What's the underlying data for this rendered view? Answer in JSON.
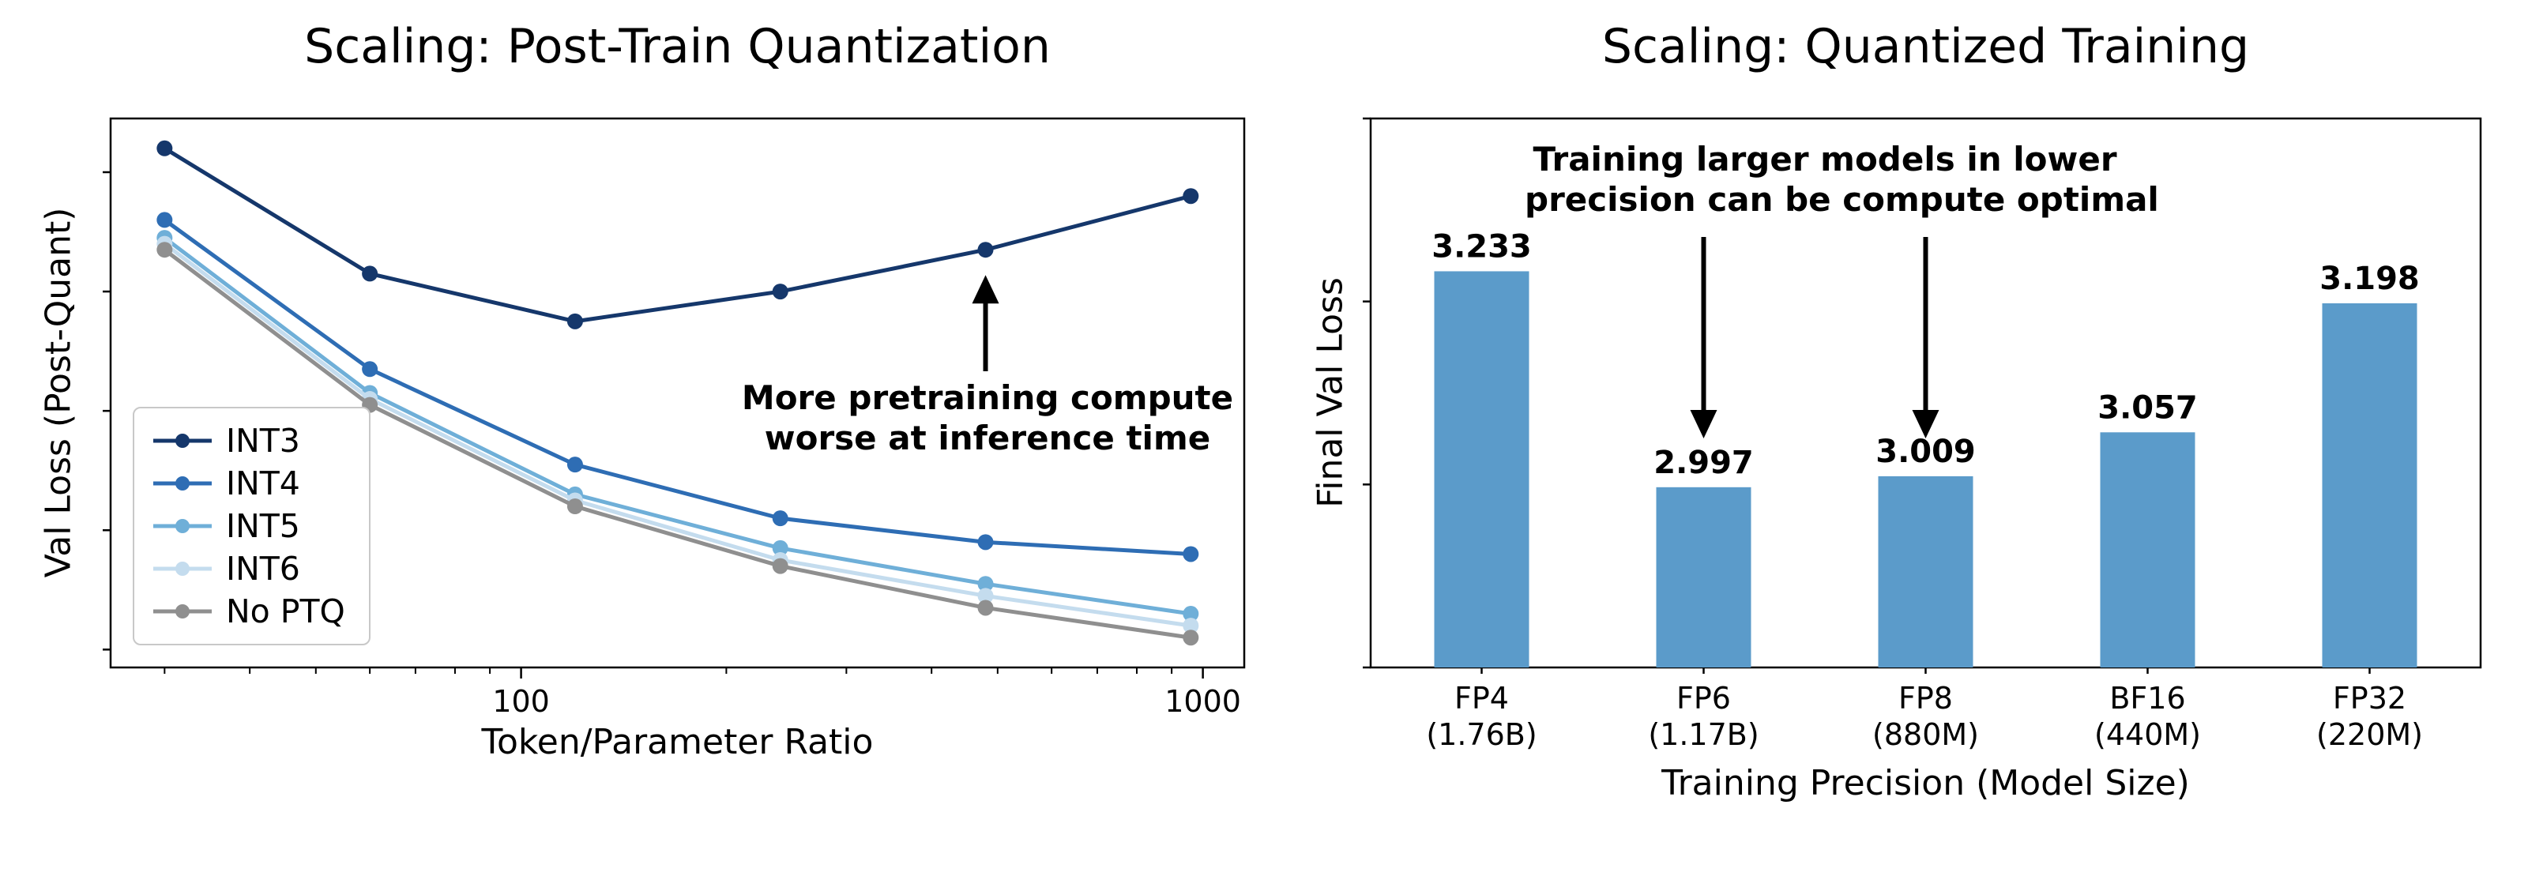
{
  "chart_data": [
    {
      "type": "line",
      "title": "Scaling: Post-Train Quantization",
      "xlabel": "Token/Parameter Ratio",
      "ylabel": "Val Loss (Post-Quant)",
      "xscale": "log",
      "xlim": [
        25,
        1150
      ],
      "ylim": [
        2.77,
        3.69
      ],
      "grid": false,
      "legend_position": "lower-left-inside",
      "xticks": [
        {
          "value": 100,
          "label": "100"
        },
        {
          "value": 1000,
          "label": "1000"
        }
      ],
      "x": [
        30,
        60,
        120,
        240,
        480,
        960
      ],
      "series": [
        {
          "name": "INT3",
          "color": "#15376b",
          "values": [
            3.64,
            3.43,
            3.35,
            3.4,
            3.47,
            3.56
          ]
        },
        {
          "name": "INT4",
          "color": "#2e6db4",
          "values": [
            3.52,
            3.27,
            3.11,
            3.02,
            2.98,
            2.96
          ]
        },
        {
          "name": "INT5",
          "color": "#6fafd8",
          "values": [
            3.49,
            3.23,
            3.06,
            2.97,
            2.91,
            2.86
          ]
        },
        {
          "name": "INT6",
          "color": "#c4dcee",
          "values": [
            3.48,
            3.22,
            3.05,
            2.95,
            2.89,
            2.84
          ]
        },
        {
          "name": "No PTQ",
          "color": "#8f8f8f",
          "values": [
            3.47,
            3.21,
            3.04,
            2.94,
            2.87,
            2.82
          ]
        }
      ],
      "annotation": {
        "lines": [
          "More pretraining compute",
          "worse at inference time"
        ],
        "arrow_direction": "up",
        "arrow_target": {
          "series": "INT3",
          "x": 480
        }
      }
    },
    {
      "type": "bar",
      "title": "Scaling: Quantized Training",
      "xlabel": "Training Precision (Model Size)",
      "ylabel": "Final Val Loss",
      "ylim": [
        2.8,
        3.4
      ],
      "bar_color": "#5b9bca",
      "categories": [
        [
          "FP4",
          "(1.76B)"
        ],
        [
          "FP6",
          "(1.17B)"
        ],
        [
          "FP8",
          "(880M)"
        ],
        [
          "BF16",
          "(440M)"
        ],
        [
          "FP32",
          "(220M)"
        ]
      ],
      "values": [
        3.233,
        2.997,
        3.009,
        3.057,
        3.198
      ],
      "value_labels": [
        "3.233",
        "2.997",
        "3.009",
        "3.057",
        "3.198"
      ],
      "annotation": {
        "lines": [
          "Training larger models in lower",
          "precision can be compute optimal"
        ],
        "arrow_direction": "down",
        "arrow_target_categories": [
          "FP6",
          "FP8"
        ]
      }
    }
  ]
}
